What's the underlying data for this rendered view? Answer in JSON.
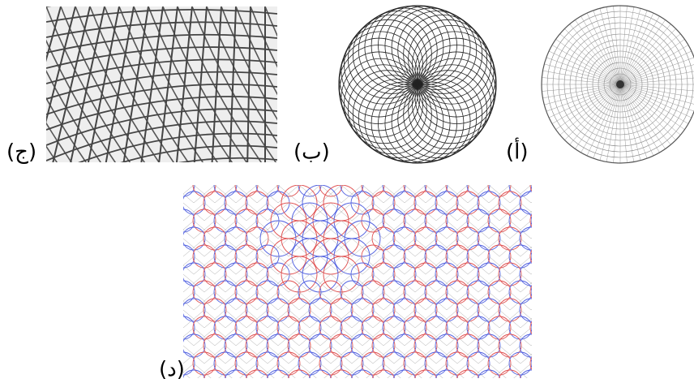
{
  "labels": {
    "a": "(أ)",
    "b": "(ب)",
    "c": "(ج)",
    "d": "(د)"
  }
}
